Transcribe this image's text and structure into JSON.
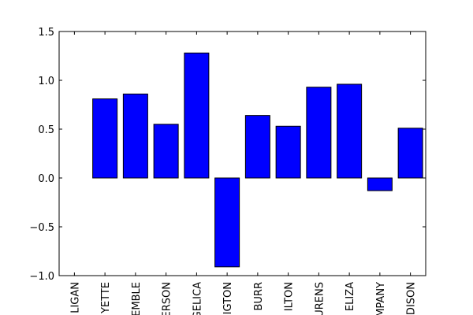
{
  "chart_data": {
    "type": "bar",
    "categories": [
      "LIGAN",
      "YETTE",
      "EMBLE",
      "ERSON",
      "GELICA",
      "IGTON",
      "BURR",
      "ILTON",
      "URENS",
      "ELIZA",
      "MPANY",
      "DISON"
    ],
    "values": [
      0.0,
      0.81,
      0.86,
      0.55,
      1.28,
      -0.91,
      0.64,
      0.53,
      0.93,
      0.96,
      -0.13,
      0.51
    ],
    "ylim": [
      -1.0,
      1.5
    ],
    "yticks": [
      -1.0,
      -0.5,
      0.0,
      0.5,
      1.0,
      1.5
    ],
    "ytick_labels": [
      "−1.0",
      "−0.5",
      "0.0",
      "0.5",
      "1.0",
      "1.5"
    ],
    "title": "",
    "xlabel": "",
    "ylabel": "",
    "grid": false,
    "colors": {
      "bar_fill": "#0000ff",
      "bar_edge": "#000000",
      "axes": "#000000",
      "background": "#ffffff"
    }
  }
}
